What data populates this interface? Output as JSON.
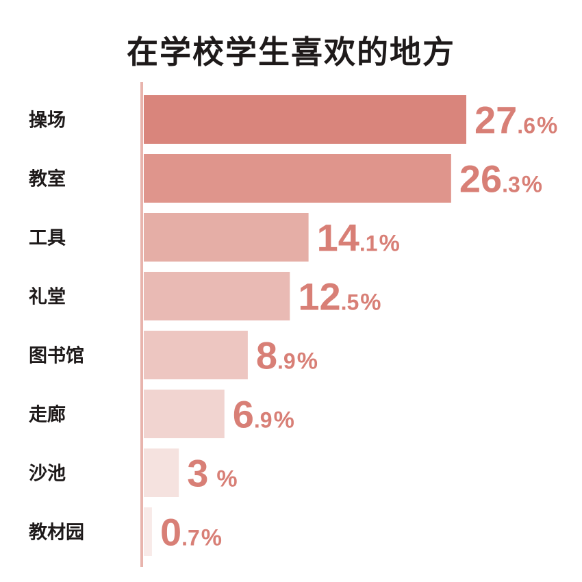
{
  "chart_data": {
    "type": "bar",
    "orientation": "horizontal",
    "title": "在学校学生喜欢的地方",
    "categories": [
      "操场",
      "教室",
      "工具",
      "礼堂",
      "图书馆",
      "走廊",
      "沙池",
      "教材园"
    ],
    "values": [
      27.6,
      26.3,
      14.1,
      12.5,
      8.9,
      6.9,
      3,
      0.7
    ],
    "value_labels": [
      {
        "int": "27",
        "dec": ".6",
        "unit": "%"
      },
      {
        "int": "26",
        "dec": ".3",
        "unit": "%"
      },
      {
        "int": "14",
        "dec": ".1",
        "unit": "%"
      },
      {
        "int": "12",
        "dec": ".5",
        "unit": "%"
      },
      {
        "int": "8",
        "dec": ".9",
        "unit": "%"
      },
      {
        "int": "6",
        "dec": ".9",
        "unit": "%"
      },
      {
        "int": "3",
        "dec": "",
        "unit": "%"
      },
      {
        "int": "0",
        "dec": ".7",
        "unit": "%"
      }
    ],
    "bar_colors": [
      "#d9857c",
      "#df958c",
      "#e5aea6",
      "#e9bab4",
      "#edc6c1",
      "#f1d4d0",
      "#f5e2df",
      "#f8eae8"
    ],
    "value_color": "#d87f76",
    "axis_color": "#e8b4ad",
    "xlim": [
      0,
      27.6
    ],
    "grid": false,
    "legend": "none"
  }
}
